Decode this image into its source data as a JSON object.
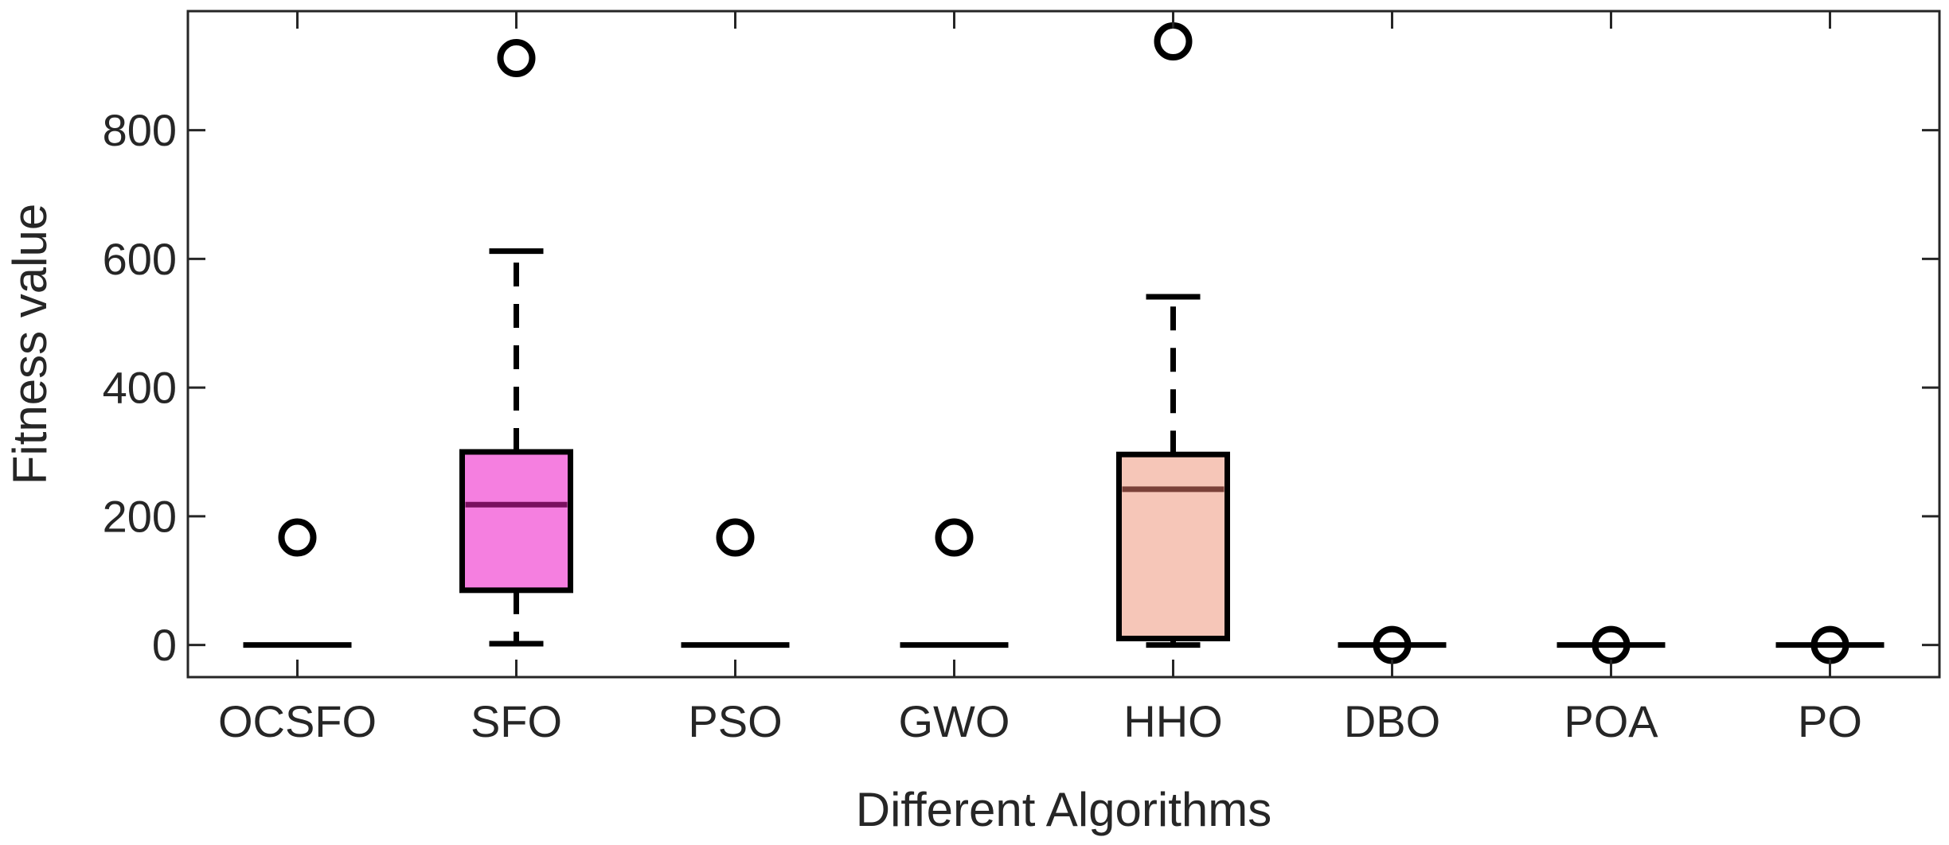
{
  "chart_data": {
    "type": "boxplot",
    "title": "",
    "xlabel": "Different Algorithms",
    "ylabel": "Fitness value",
    "ylim": [
      -50,
      985
    ],
    "yticks": [
      0,
      200,
      400,
      600,
      800
    ],
    "ytick_labels": [
      "0",
      "200",
      "400",
      "600",
      "800"
    ],
    "grid": false,
    "categories": [
      "OCSFO",
      "SFO",
      "PSO",
      "GWO",
      "HHO",
      "DBO",
      "POA",
      "PO"
    ],
    "series": [
      {
        "name": "OCSFO",
        "whisker_low": 0,
        "q1": 0,
        "median": 0,
        "q3": 0,
        "whisker_high": 0,
        "outliers": [
          167
        ],
        "fill": "none",
        "median_color": "#000000"
      },
      {
        "name": "SFO",
        "whisker_low": 2,
        "q1": 85,
        "median": 218,
        "q3": 300,
        "whisker_high": 612,
        "outliers": [
          912
        ],
        "fill": "#f57fe0",
        "median_color": "#7a1060"
      },
      {
        "name": "PSO",
        "whisker_low": 0,
        "q1": 0,
        "median": 0,
        "q3": 0,
        "whisker_high": 0,
        "outliers": [
          167
        ],
        "fill": "none",
        "median_color": "#000000"
      },
      {
        "name": "GWO",
        "whisker_low": 0,
        "q1": 0,
        "median": 0,
        "q3": 0,
        "whisker_high": 0,
        "outliers": [
          167
        ],
        "fill": "none",
        "median_color": "#000000"
      },
      {
        "name": "HHO",
        "whisker_low": 0,
        "q1": 10,
        "median": 242,
        "q3": 296,
        "whisker_high": 541,
        "outliers": [
          938
        ],
        "fill": "#f6c6b8",
        "median_color": "#7a4038"
      },
      {
        "name": "DBO",
        "whisker_low": 0,
        "q1": 0,
        "median": 0,
        "q3": 0,
        "whisker_high": 0,
        "outliers": [
          0
        ],
        "fill": "none",
        "median_color": "#000000"
      },
      {
        "name": "POA",
        "whisker_low": 0,
        "q1": 0,
        "median": 0,
        "q3": 0,
        "whisker_high": 0,
        "outliers": [
          0
        ],
        "fill": "none",
        "median_color": "#000000"
      },
      {
        "name": "PO",
        "whisker_low": 0,
        "q1": 0,
        "median": 0,
        "q3": 0,
        "whisker_high": 0,
        "outliers": [
          0
        ],
        "fill": "none",
        "median_color": "#000000"
      }
    ]
  }
}
